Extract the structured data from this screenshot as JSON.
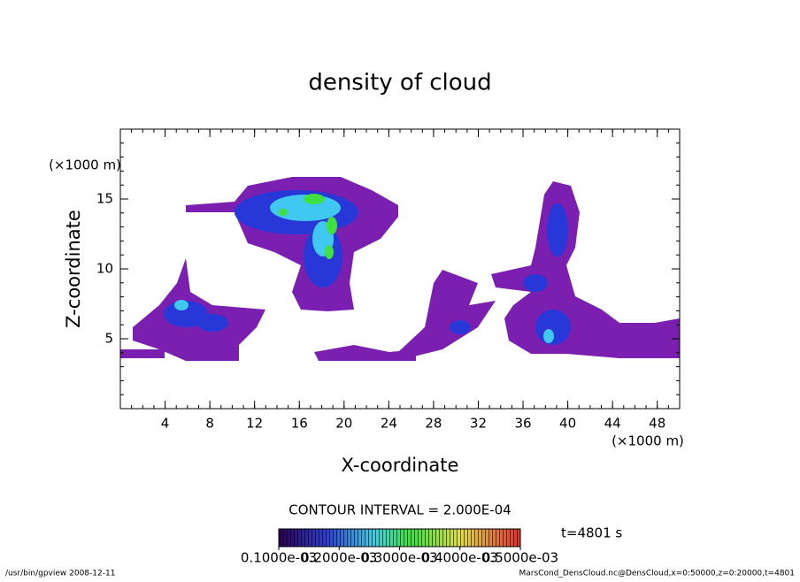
{
  "chart_data": {
    "type": "contour",
    "title": "density of cloud",
    "x_label": "X-coordinate",
    "y_label": "Z-coordinate",
    "x_unit": "(×1000 m)",
    "xlim": [
      0,
      50
    ],
    "xticks": [
      4,
      8,
      12,
      16,
      20,
      24,
      28,
      32,
      36,
      40,
      44,
      48
    ],
    "ylim": [
      0,
      20
    ],
    "yticks": [
      5,
      10,
      15
    ],
    "contour_interval": "CONTOUR INTERVAL = 2.000E-04",
    "time": "t=4801 s",
    "colorbar": {
      "lim": [
        0.0001,
        0.0005
      ],
      "ticks": [
        {
          "value": 0.0001,
          "label": "0.1000e-03"
        },
        {
          "value": 0.0002,
          "label": "0.2000e-03"
        },
        {
          "value": 0.0003,
          "label": "0.3000e-03"
        },
        {
          "value": 0.0004,
          "label": "0.4000e-03"
        },
        {
          "value": 0.0005,
          "label": "0.5000e-03"
        }
      ]
    },
    "footer_left": "/usr/bin/gpview  2008-12-11",
    "footer_right": "MarsCond_DensCloud.nc@DensCloud,x=0:50000,z=0:20000,t=4801"
  }
}
